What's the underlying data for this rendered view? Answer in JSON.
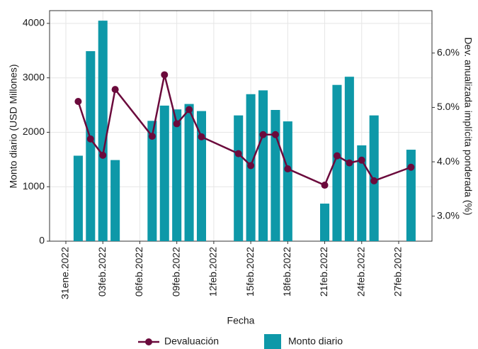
{
  "chart_data": {
    "type": "bar-line",
    "x_label": "Fecha",
    "y_label": "Monto diario (USD Millones)",
    "y2_label": "Dev. anualizada implícita ponderada (%)",
    "x": [
      "2022-02-01",
      "2022-02-02",
      "2022-02-03",
      "2022-02-04",
      "2022-02-07",
      "2022-02-08",
      "2022-02-09",
      "2022-02-10",
      "2022-02-11",
      "2022-02-14",
      "2022-02-15",
      "2022-02-16",
      "2022-02-17",
      "2022-02-18",
      "2022-02-21",
      "2022-02-22",
      "2022-02-23",
      "2022-02-24",
      "2022-02-25",
      "2022-02-28"
    ],
    "series": [
      {
        "name": "Devaluación",
        "type": "line",
        "axis": "y2",
        "color": "#6b0a3c",
        "values": [
          5.11,
          4.42,
          4.12,
          5.33,
          4.47,
          5.6,
          4.7,
          4.96,
          4.46,
          4.15,
          3.93,
          4.5,
          4.5,
          3.87,
          3.57,
          4.11,
          3.98,
          4.03,
          3.65,
          3.9
        ]
      },
      {
        "name": "Monto diario",
        "type": "bar",
        "color": "#0e98a8",
        "values": [
          1570,
          3490,
          4050,
          1490,
          2210,
          2490,
          2420,
          2520,
          2390,
          2310,
          2700,
          2770,
          2410,
          2200,
          690,
          2870,
          3020,
          1760,
          2310,
          1680
        ]
      }
    ],
    "xlim": [
      "2022-01-30",
      "2022-03-01"
    ],
    "xticks": [
      {
        "value": "2022-01-31",
        "label": "31ene.2022"
      },
      {
        "value": "2022-02-03",
        "label": "03feb.2022"
      },
      {
        "value": "2022-02-06",
        "label": "06feb.2022"
      },
      {
        "value": "2022-02-09",
        "label": "09feb.2022"
      },
      {
        "value": "2022-02-12",
        "label": "12feb.2022"
      },
      {
        "value": "2022-02-15",
        "label": "15feb.2022"
      },
      {
        "value": "2022-02-18",
        "label": "18feb.2022"
      },
      {
        "value": "2022-02-21",
        "label": "21feb.2022"
      },
      {
        "value": "2022-02-24",
        "label": "24feb.2022"
      },
      {
        "value": "2022-02-27",
        "label": "27feb.2022"
      }
    ],
    "ylim": [
      0,
      4234
    ],
    "yticks": [
      0,
      1000,
      2000,
      3000,
      4000
    ],
    "y2lim": [
      2.54,
      6.78
    ],
    "y2ticks": [
      {
        "value": 3,
        "label": "3.0%"
      },
      {
        "value": 4,
        "label": "4.0%"
      },
      {
        "value": 5,
        "label": "5.0%"
      },
      {
        "value": 6,
        "label": "6.0%"
      }
    ],
    "grid": true,
    "legend": "bottom"
  }
}
